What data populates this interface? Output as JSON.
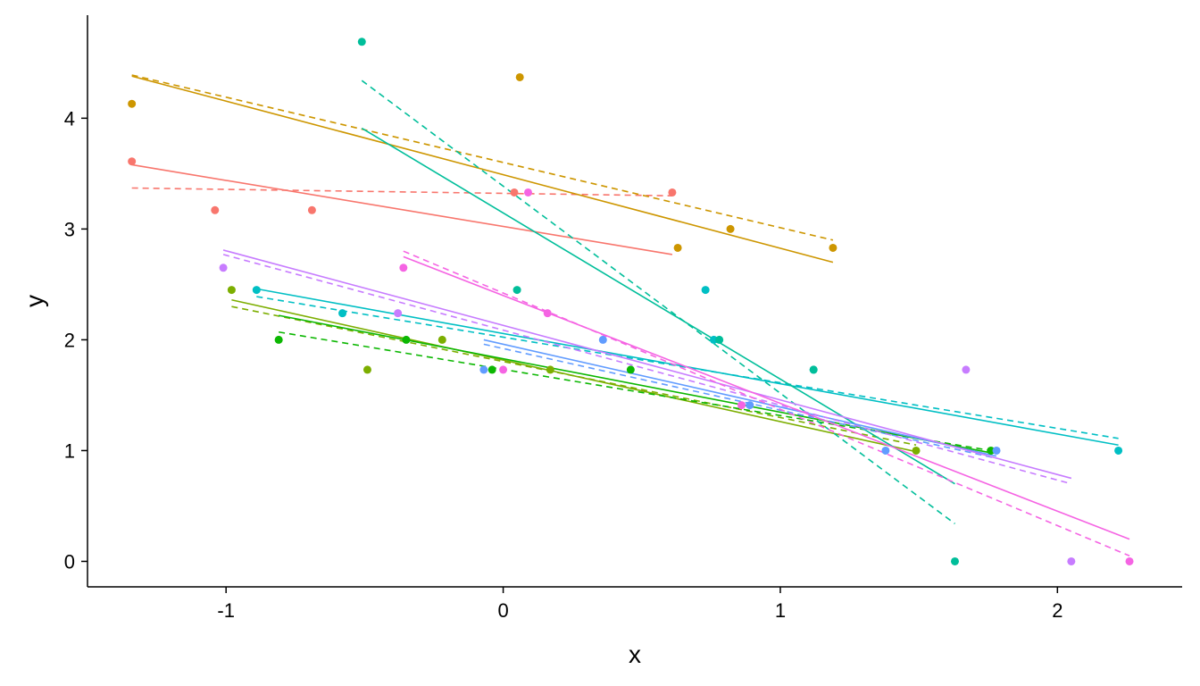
{
  "chart_data": {
    "type": "scatter",
    "xlabel": "x",
    "ylabel": "y",
    "xlim": [
      -1.5,
      2.45
    ],
    "ylim": [
      -0.23,
      4.93
    ],
    "xticks": [
      -1,
      0,
      1,
      2
    ],
    "xtick_labels": [
      "-1",
      "0",
      "1",
      "2"
    ],
    "yticks": [
      0,
      1,
      2,
      3,
      4
    ],
    "ytick_labels": [
      "0",
      "1",
      "2",
      "3",
      "4"
    ],
    "grid": false,
    "legend": "none",
    "series": [
      {
        "color": "#F8766D",
        "points": [
          [
            -1.34,
            3.61
          ],
          [
            -1.04,
            3.17
          ],
          [
            -0.69,
            3.17
          ],
          [
            0.04,
            3.33
          ],
          [
            0.61,
            3.33
          ]
        ],
        "fit_solid": [
          [
            -1.34,
            3.58
          ],
          [
            0.61,
            2.77
          ]
        ],
        "fit_dashed": [
          [
            -1.34,
            3.37
          ],
          [
            0.61,
            3.3
          ]
        ]
      },
      {
        "color": "#CD9600",
        "points": [
          [
            -1.34,
            4.13
          ],
          [
            0.06,
            4.37
          ],
          [
            0.63,
            2.83
          ],
          [
            0.82,
            3.0
          ],
          [
            1.19,
            2.83
          ]
        ],
        "fit_solid": [
          [
            -1.34,
            4.38
          ],
          [
            1.19,
            2.7
          ]
        ],
        "fit_dashed": [
          [
            -1.34,
            4.39
          ],
          [
            1.19,
            2.9
          ]
        ]
      },
      {
        "color": "#7CAE00",
        "points": [
          [
            -0.98,
            2.45
          ],
          [
            -0.49,
            1.73
          ],
          [
            -0.22,
            2.0
          ],
          [
            0.17,
            1.73
          ],
          [
            1.49,
            1.0
          ]
        ],
        "fit_solid": [
          [
            -0.98,
            2.36
          ],
          [
            1.49,
            0.99
          ]
        ],
        "fit_dashed": [
          [
            -0.98,
            2.3
          ],
          [
            1.49,
            1.05
          ]
        ]
      },
      {
        "color": "#0CB702",
        "points": [
          [
            -0.81,
            2.0
          ],
          [
            -0.35,
            2.0
          ],
          [
            -0.04,
            1.73
          ],
          [
            0.46,
            1.73
          ],
          [
            1.76,
            1.0
          ]
        ],
        "fit_solid": [
          [
            -0.81,
            2.22
          ],
          [
            1.76,
            0.98
          ]
        ],
        "fit_dashed": [
          [
            -0.81,
            2.07
          ],
          [
            1.76,
            1.0
          ]
        ]
      },
      {
        "color": "#00BFC4",
        "points": [
          [
            -0.89,
            2.45
          ],
          [
            -0.58,
            2.24
          ],
          [
            0.73,
            2.45
          ],
          [
            0.76,
            2.0
          ],
          [
            1.12,
            1.73
          ],
          [
            2.22,
            1.0
          ]
        ],
        "fit_solid": [
          [
            -0.89,
            2.46
          ],
          [
            2.22,
            1.05
          ]
        ],
        "fit_dashed": [
          [
            -0.89,
            2.39
          ],
          [
            2.22,
            1.11
          ]
        ]
      },
      {
        "color": "#00BE9A",
        "points": [
          [
            -0.51,
            4.69
          ],
          [
            0.05,
            2.45
          ],
          [
            0.78,
            2.0
          ],
          [
            1.12,
            1.73
          ],
          [
            1.63,
            0.0
          ]
        ],
        "fit_solid": [
          [
            -0.51,
            3.91
          ],
          [
            1.63,
            0.7
          ]
        ],
        "fit_dashed": [
          [
            -0.51,
            4.34
          ],
          [
            1.63,
            0.34
          ]
        ]
      },
      {
        "color": "#619CFF",
        "points": [
          [
            -0.07,
            1.73
          ],
          [
            0.36,
            2.0
          ],
          [
            0.89,
            1.41
          ],
          [
            1.38,
            1.0
          ],
          [
            1.78,
            1.0
          ]
        ],
        "fit_solid": [
          [
            -0.07,
            2.0
          ],
          [
            1.78,
            0.95
          ]
        ],
        "fit_dashed": [
          [
            -0.07,
            1.96
          ],
          [
            1.78,
            0.93
          ]
        ]
      },
      {
        "color": "#C77CFF",
        "points": [
          [
            -1.01,
            2.65
          ],
          [
            -0.38,
            2.24
          ],
          [
            1.67,
            1.73
          ],
          [
            2.05,
            0.0
          ]
        ],
        "fit_solid": [
          [
            -1.01,
            2.81
          ],
          [
            2.05,
            0.75
          ]
        ],
        "fit_dashed": [
          [
            -1.01,
            2.77
          ],
          [
            2.05,
            0.7
          ]
        ]
      },
      {
        "color": "#F564E3",
        "points": [
          [
            -0.36,
            2.65
          ],
          [
            0.0,
            1.73
          ],
          [
            0.09,
            3.33
          ],
          [
            0.16,
            2.24
          ],
          [
            0.86,
            1.41
          ],
          [
            2.26,
            0.0
          ]
        ],
        "fit_solid": [
          [
            -0.36,
            2.75
          ],
          [
            2.26,
            0.2
          ]
        ],
        "fit_dashed": [
          [
            -0.36,
            2.8
          ],
          [
            2.26,
            0.05
          ]
        ]
      }
    ]
  }
}
